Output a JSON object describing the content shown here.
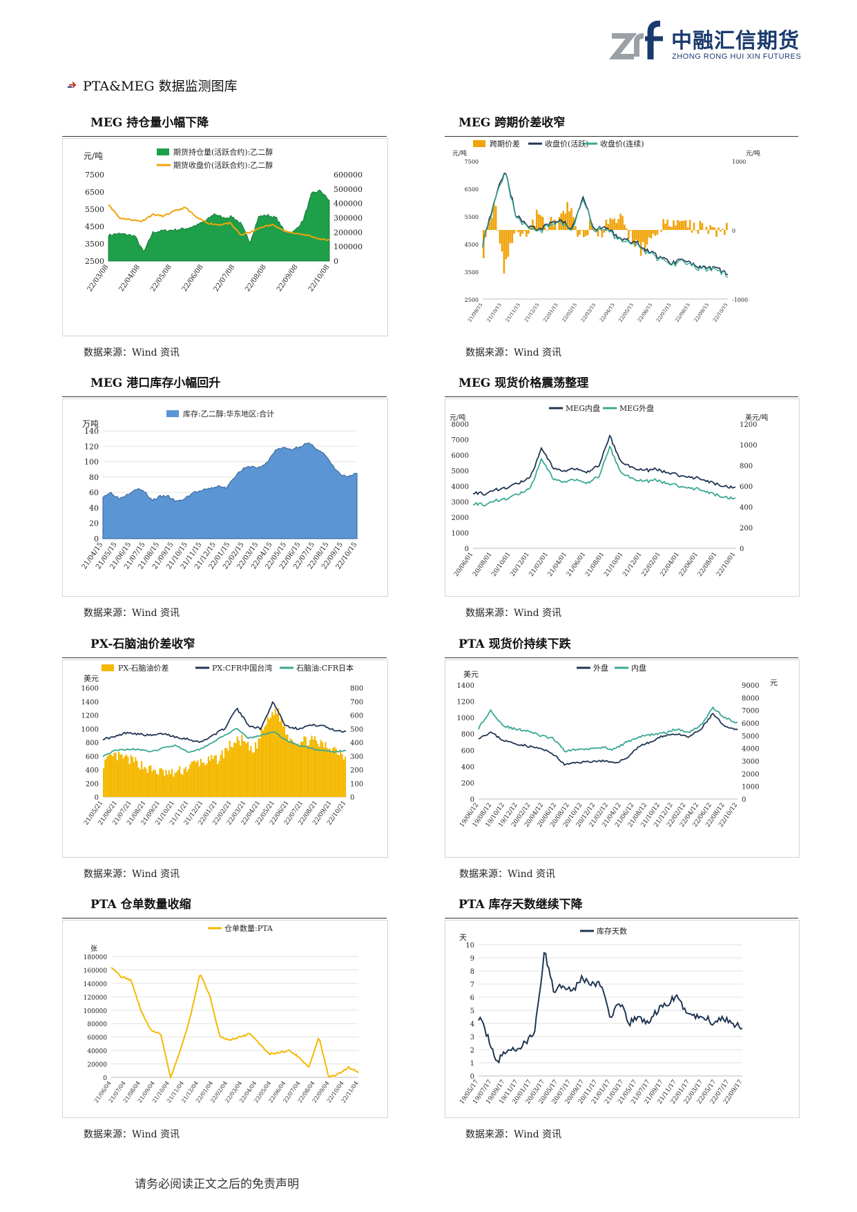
{
  "header": {
    "logo_mark": "zrf",
    "company_cn": "中融汇信期货",
    "company_en": "ZHONG RONG HUI XIN FUTURES",
    "brand_color": "#1a3a6e",
    "accent_color": "#9aa0a6"
  },
  "section": {
    "title": "PTA&MEG 数据监测图库",
    "bullet_icon": "arrow-bullet-icon"
  },
  "footer": {
    "disclaimer": "请务必阅读正文之后的免责声明"
  },
  "charts": [
    {
      "title": "MEG 持仓量小幅下降",
      "source": "数据来源：Wind 资讯",
      "unit_left": "元/吨",
      "legend": [
        "期货持仓量(活跃合约):乙二醇",
        "期货收盘价(活跃合约):乙二醇"
      ],
      "yticks_left": [
        "7500",
        "6500",
        "5500",
        "4500",
        "3500",
        "2500"
      ],
      "yticks_right": [
        "600000",
        "500000",
        "400000",
        "300000",
        "200000",
        "100000",
        "0"
      ],
      "xticks": [
        "22/03/08",
        "22/04/08",
        "22/05/08",
        "22/06/08",
        "22/07/08",
        "22/08/08",
        "22/09/08",
        "22/10/08"
      ]
    },
    {
      "title": "MEG 跨期价差收窄",
      "source": "数据来源：Wind 资讯",
      "unit_left": "元/吨",
      "unit_right": "元/吨",
      "legend": [
        "跨期价差",
        "收盘价(活跃)",
        "收盘价(连续)"
      ],
      "yticks_left": [
        "7500",
        "6500",
        "5500",
        "4500",
        "3500",
        "2500"
      ],
      "yticks_right": [
        "1000",
        "0",
        "-1000"
      ],
      "xticks": [
        "21/09/15",
        "21/10/15",
        "21/11/15",
        "21/12/15",
        "22/01/15",
        "22/02/15",
        "22/03/15",
        "22/04/15",
        "22/05/15",
        "22/06/15",
        "22/07/15",
        "22/08/15",
        "22/09/15",
        "22/10/15"
      ]
    },
    {
      "title": "MEG 港口库存小幅回升",
      "source": "数据来源：Wind 资讯",
      "unit_left": "万吨",
      "legend": [
        "库存:乙二醇:华东地区:合计"
      ],
      "yticks_left": [
        "140",
        "120",
        "100",
        "80",
        "60",
        "40",
        "20",
        "0"
      ],
      "xticks": [
        "21/04/15",
        "21/05/15",
        "21/06/15",
        "21/07/15",
        "21/08/15",
        "21/09/15",
        "21/10/15",
        "21/11/15",
        "21/12/15",
        "22/01/15",
        "22/02/15",
        "22/03/15",
        "22/04/15",
        "22/05/15",
        "22/06/15",
        "22/07/15",
        "22/08/15",
        "22/09/15",
        "22/10/15"
      ]
    },
    {
      "title": "MEG 现货价格震荡整理",
      "source": "数据来源：Wind 资讯",
      "unit_left": "元/吨",
      "unit_right": "美元/吨",
      "legend": [
        "MEG内盘",
        "MEG外盘"
      ],
      "yticks_left": [
        "8000",
        "7000",
        "6000",
        "5000",
        "4000",
        "3000",
        "2000",
        "1000",
        "0"
      ],
      "yticks_right": [
        "1200",
        "1000",
        "800",
        "600",
        "400",
        "200",
        "0"
      ],
      "xticks": [
        "20/06/01",
        "20/08/01",
        "20/10/01",
        "20/12/01",
        "21/02/01",
        "21/04/01",
        "21/06/01",
        "21/08/01",
        "21/10/01",
        "21/12/01",
        "22/02/01",
        "22/04/01",
        "22/06/01",
        "22/08/01",
        "22/10/01"
      ]
    },
    {
      "title": "PX-石脑油价差收窄",
      "source": "数据来源：Wind 资讯",
      "unit_left": "美元",
      "legend": [
        "PX-石脑油价差",
        "PX:CFR中国台湾",
        "石脑油:CFR日本"
      ],
      "yticks_left": [
        "1600",
        "1400",
        "1200",
        "1000",
        "800",
        "600",
        "400",
        "200",
        "0"
      ],
      "yticks_right": [
        "800",
        "700",
        "600",
        "500",
        "400",
        "300",
        "200",
        "100",
        "0"
      ],
      "xticks": [
        "21/05/21",
        "21/06/21",
        "21/07/21",
        "21/08/21",
        "21/09/21",
        "21/10/21",
        "21/11/21",
        "21/12/21",
        "22/01/21",
        "22/02/21",
        "22/03/21",
        "22/04/21",
        "22/05/21",
        "22/06/21",
        "22/07/21",
        "22/08/21",
        "22/09/21",
        "22/10/21"
      ]
    },
    {
      "title": "PTA 现货价持续下跌",
      "source": "数据来源：Wind 资讯",
      "unit_left": "美元",
      "unit_right": "元",
      "legend": [
        "外盘",
        "内盘"
      ],
      "yticks_left": [
        "1400",
        "1200",
        "1000",
        "800",
        "600",
        "400",
        "200",
        "0"
      ],
      "yticks_right": [
        "9000",
        "8000",
        "7000",
        "6000",
        "5000",
        "4000",
        "3000",
        "2000",
        "1000",
        "0"
      ],
      "xticks": [
        "19/06/12",
        "19/08/12",
        "19/10/12",
        "19/12/12",
        "20/02/12",
        "20/04/12",
        "20/06/12",
        "20/08/12",
        "20/10/12",
        "20/12/12",
        "21/02/12",
        "21/04/12",
        "21/06/12",
        "21/08/12",
        "21/10/12",
        "21/12/12",
        "22/02/12",
        "22/04/12",
        "22/06/12",
        "22/08/12",
        "22/10/12"
      ]
    },
    {
      "title": "PTA 仓单数量收缩",
      "source": "数据来源：Wind 资讯",
      "unit_left": "张",
      "legend": [
        "仓单数量:PTA"
      ],
      "yticks_left": [
        "180000",
        "160000",
        "140000",
        "120000",
        "100000",
        "80000",
        "60000",
        "40000",
        "20000",
        "0"
      ],
      "xticks": [
        "21/06/04",
        "21/07/04",
        "21/08/04",
        "21/09/04",
        "21/10/04",
        "21/11/04",
        "21/12/04",
        "22/01/04",
        "22/02/04",
        "22/03/04",
        "22/04/04",
        "22/05/04",
        "22/06/04",
        "22/07/04",
        "22/08/04",
        "22/09/04",
        "22/10/04",
        "22/11/04"
      ]
    },
    {
      "title": "PTA 库存天数继续下降",
      "source": "数据来源：Wind 资讯",
      "unit_left": "天",
      "legend": [
        "库存天数"
      ],
      "yticks_left": [
        "10",
        "9",
        "8",
        "7",
        "6",
        "5",
        "4",
        "3",
        "2",
        "1",
        "0"
      ],
      "xticks": [
        "19/05/17",
        "19/07/17",
        "19/09/17",
        "19/11/17",
        "20/01/17",
        "20/03/17",
        "20/05/17",
        "20/07/17",
        "20/09/17",
        "20/11/17",
        "21/01/17",
        "21/03/17",
        "21/05/17",
        "21/07/17",
        "21/09/17",
        "21/11/17",
        "22/01/17",
        "22/03/17",
        "22/05/17",
        "22/07/17",
        "22/09/17"
      ]
    }
  ],
  "colors": {
    "green_fill": "#1e9f4a",
    "orange": "#f0a30a",
    "navy": "#1f3553",
    "teal": "#3aa892",
    "blue_fill": "#5b95d3",
    "yellow": "#f5b800"
  }
}
